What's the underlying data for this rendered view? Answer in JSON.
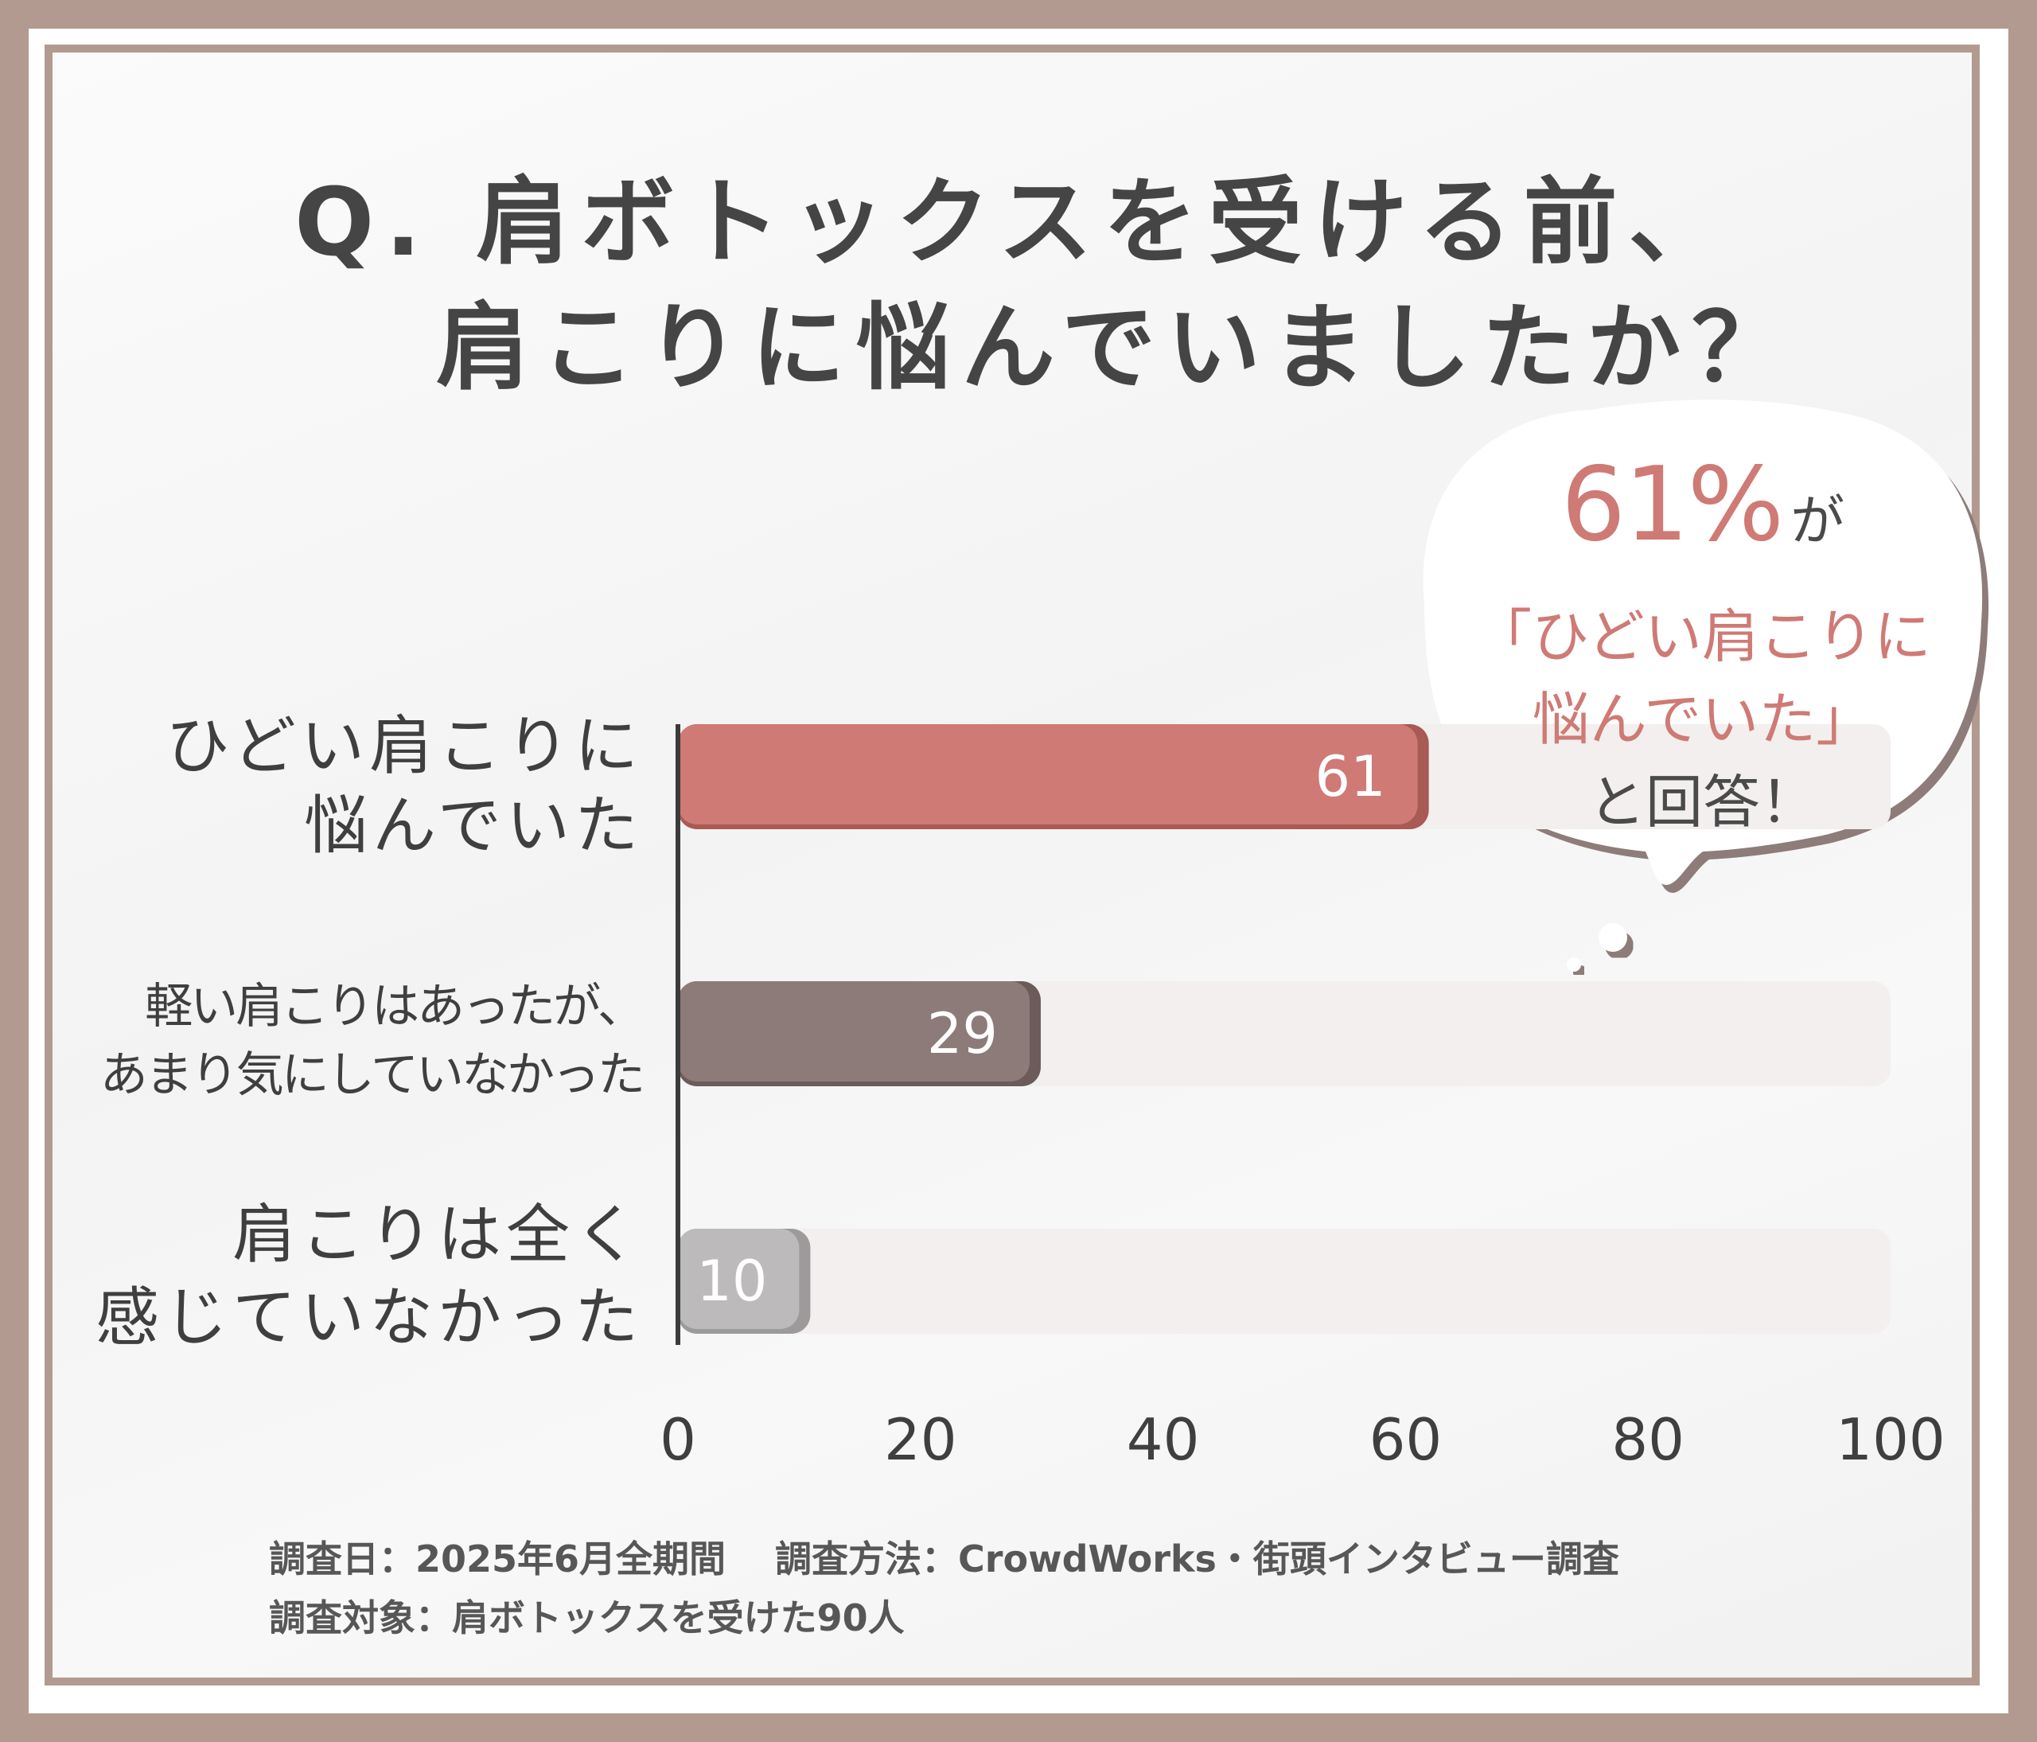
{
  "title": {
    "line1": "Q. 肩ボトックスを受ける前、",
    "line2": "肩こりに悩んでいましたか？"
  },
  "callout": {
    "percent": "61%",
    "particle": "が",
    "quote_line1": "「ひどい肩こりに",
    "quote_line2": "悩んでいた」",
    "answer": "と回答！"
  },
  "colors": {
    "bar_severe": "#cf7a75",
    "bar_mild": "#8d7b79",
    "bar_none": "#bcbaba",
    "track": "#f2efee",
    "frame": "#b39a90"
  },
  "chart_data": {
    "type": "bar",
    "orientation": "horizontal",
    "categories": [
      [
        "ひどい肩こりに",
        "悩んでいた"
      ],
      [
        "軽い肩こりはあったが、",
        "あまり気にしていなかった"
      ],
      [
        "肩こりは全く",
        "感じていなかった"
      ]
    ],
    "values": [
      61,
      29,
      10
    ],
    "data_labels": [
      "61",
      "29",
      "10"
    ],
    "xlim": [
      0,
      100
    ],
    "x_ticks": [
      "0",
      "20",
      "40",
      "60",
      "80",
      "100"
    ],
    "title": "",
    "xlabel": "",
    "ylabel": "",
    "grid": false
  },
  "footer": {
    "date": "調査日：2025年6月全期間",
    "method": "調査方法：CrowdWorks・街頭インタビュー調査",
    "target": "調査対象：肩ボトックスを受けた90人"
  }
}
